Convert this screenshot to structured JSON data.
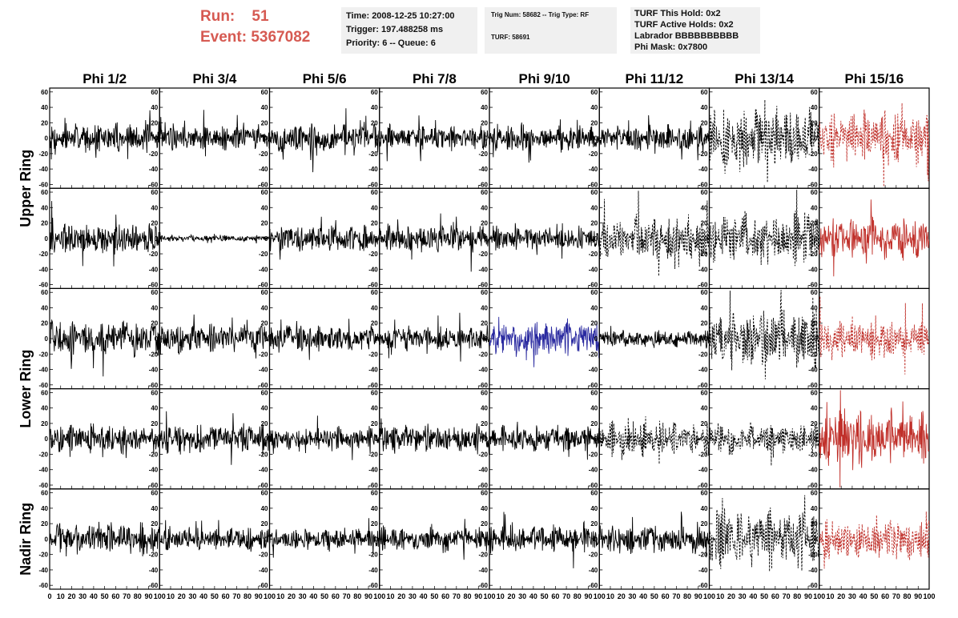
{
  "header": {
    "run_label": "Run:",
    "run_value": "51",
    "event_label": "Event:",
    "event_value": "5367082"
  },
  "time_box": {
    "time": "Time: 2008-12-25 10:27:00",
    "trigger": "Trigger: 197.488258 ms",
    "priority": "Priority: 6 -- Queue: 6"
  },
  "trig_box": {
    "trig": "Trig Num: 58682 -- Trig Type: RF",
    "turf": "TURF: 58691"
  },
  "turf_box": {
    "this_hold": "TURF This Hold: 0x2",
    "active_holds": "TURF Active Holds: 0x2",
    "labrador": "Labrador BBBBBBBBBB",
    "phi_mask": "Phi Mask: 0x7800"
  },
  "colors": {
    "header_red": "#d65a52",
    "box_bg": "#f0f0f0",
    "trace_black": "#000000",
    "trace_red": "#c0302a",
    "trace_blue": "#2a2aa0"
  },
  "chart_data": {
    "type": "line",
    "columns": [
      "Phi 1/2",
      "Phi 3/4",
      "Phi 5/6",
      "Phi 7/8",
      "Phi 9/10",
      "Phi 11/12",
      "Phi 13/14",
      "Phi 15/16"
    ],
    "rows": [
      "Upper Ring",
      "Lower Ring",
      "Nadir Ring"
    ],
    "xlim": [
      0,
      100
    ],
    "ylim": [
      -65,
      65
    ],
    "ytick_labels": [
      "60",
      "40",
      "20",
      "0",
      "-20",
      "-40",
      "-60"
    ],
    "xtick_labels": [
      "0",
      "10",
      "20",
      "30",
      "40",
      "50",
      "60",
      "70",
      "80",
      "90",
      "100"
    ],
    "grid": false,
    "panels": [
      [
        {
          "style": "solid",
          "color": "black",
          "amp": 14
        },
        {
          "style": "solid",
          "color": "black",
          "amp": 13
        },
        {
          "style": "solid",
          "color": "black",
          "amp": 15
        },
        {
          "style": "solid",
          "color": "black",
          "amp": 12
        },
        {
          "style": "solid",
          "color": "black",
          "amp": 13
        },
        {
          "style": "solid",
          "color": "black",
          "amp": 12
        },
        {
          "style": "dashed",
          "color": "black",
          "amp": 30
        },
        {
          "style": "dashed",
          "color": "red",
          "amp": 25
        }
      ],
      [
        {
          "style": "solid",
          "color": "black",
          "amp": 16
        },
        {
          "style": "solid",
          "color": "black",
          "amp": 3
        },
        {
          "style": "solid",
          "color": "black",
          "amp": 13
        },
        {
          "style": "solid",
          "color": "black",
          "amp": 14
        },
        {
          "style": "solid",
          "color": "black",
          "amp": 11
        },
        {
          "style": "dashed",
          "color": "black",
          "amp": 22
        },
        {
          "style": "dashed",
          "color": "black",
          "amp": 24
        },
        {
          "style": "solid",
          "color": "red",
          "amp": 20
        }
      ],
      [
        {
          "style": "solid",
          "color": "black",
          "amp": 17
        },
        {
          "style": "solid",
          "color": "black",
          "amp": 14
        },
        {
          "style": "solid",
          "color": "black",
          "amp": 13
        },
        {
          "style": "solid",
          "color": "black",
          "amp": 12
        },
        {
          "style": "solid",
          "color": "blue",
          "amp": 17
        },
        {
          "style": "solid",
          "color": "black",
          "amp": 9
        },
        {
          "style": "dashed",
          "color": "black",
          "amp": 28
        },
        {
          "style": "dashed",
          "color": "red",
          "amp": 18
        }
      ],
      [
        {
          "style": "solid",
          "color": "black",
          "amp": 13
        },
        {
          "style": "solid",
          "color": "black",
          "amp": 14
        },
        {
          "style": "solid",
          "color": "black",
          "amp": 11
        },
        {
          "style": "solid",
          "color": "black",
          "amp": 14
        },
        {
          "style": "solid",
          "color": "black",
          "amp": 12
        },
        {
          "style": "dashed",
          "color": "black",
          "amp": 16
        },
        {
          "style": "dashed",
          "color": "black",
          "amp": 15
        },
        {
          "style": "solid",
          "color": "red",
          "amp": 26
        }
      ],
      [
        {
          "style": "solid",
          "color": "black",
          "amp": 15
        },
        {
          "style": "solid",
          "color": "black",
          "amp": 11
        },
        {
          "style": "solid",
          "color": "black",
          "amp": 10
        },
        {
          "style": "solid",
          "color": "black",
          "amp": 12
        },
        {
          "style": "solid",
          "color": "black",
          "amp": 13
        },
        {
          "style": "solid",
          "color": "black",
          "amp": 14
        },
        {
          "style": "dashed",
          "color": "black",
          "amp": 28
        },
        {
          "style": "dashed",
          "color": "red",
          "amp": 20
        }
      ]
    ]
  }
}
